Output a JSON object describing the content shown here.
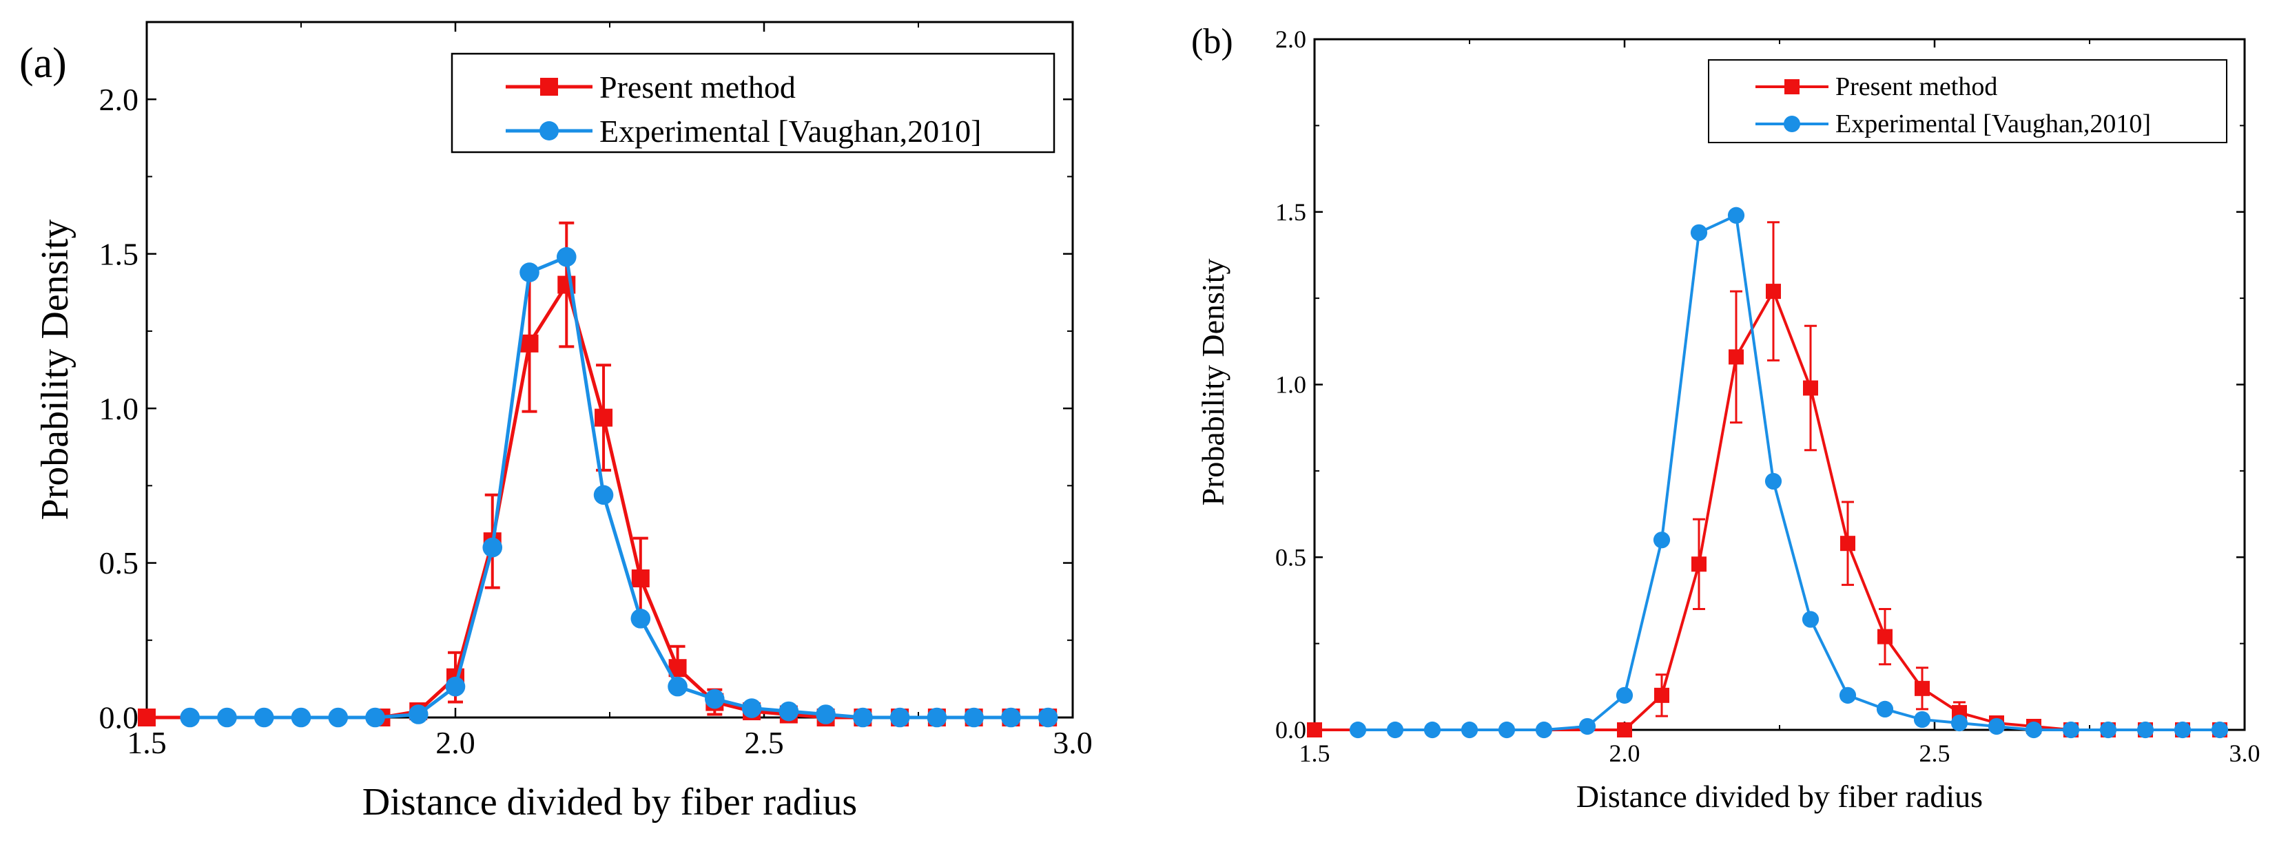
{
  "chart_data": [
    {
      "panel_label": "(a)",
      "type": "line",
      "xlabel": "Distance divided by fiber radius",
      "ylabel": "Probability Density",
      "xlim": [
        1.5,
        3.0
      ],
      "ylim": [
        0.0,
        2.25
      ],
      "xticks": [
        1.5,
        2.0,
        2.5,
        3.0
      ],
      "xtick_labels": [
        "1.5",
        "2.0",
        "2.5",
        "3.0"
      ],
      "yticks": [
        0.0,
        0.5,
        1.0,
        1.5,
        2.0
      ],
      "ytick_labels": [
        "0.0",
        "0.5",
        "1.0",
        "1.5",
        "2.0"
      ],
      "legend_position": "top-right",
      "series": [
        {
          "name": "Present method",
          "color": "#ee1111",
          "marker": "square",
          "x": [
            1.5,
            1.88,
            1.94,
            2.0,
            2.06,
            2.12,
            2.18,
            2.24,
            2.3,
            2.36,
            2.42,
            2.48,
            2.54,
            2.6,
            2.66,
            2.72,
            2.78,
            2.84,
            2.9,
            2.96
          ],
          "y": [
            0.0,
            0.0,
            0.02,
            0.13,
            0.57,
            1.21,
            1.4,
            0.97,
            0.45,
            0.16,
            0.05,
            0.02,
            0.01,
            0.0,
            0.0,
            0.0,
            0.0,
            0.0,
            0.0,
            0.0
          ],
          "error": [
            0,
            0,
            0.01,
            0.08,
            0.15,
            0.22,
            0.2,
            0.17,
            0.13,
            0.07,
            0.04,
            0.02,
            0,
            0,
            0,
            0,
            0,
            0,
            0,
            0
          ]
        },
        {
          "name": "Experimental [Vaughan,2010]",
          "color": "#1a8fe6",
          "marker": "circle",
          "x": [
            1.57,
            1.63,
            1.69,
            1.75,
            1.81,
            1.87,
            1.94,
            2.0,
            2.06,
            2.12,
            2.18,
            2.24,
            2.3,
            2.36,
            2.42,
            2.48,
            2.54,
            2.6,
            2.66,
            2.72,
            2.78,
            2.84,
            2.9,
            2.96
          ],
          "y": [
            0.0,
            0.0,
            0.0,
            0.0,
            0.0,
            0.0,
            0.01,
            0.1,
            0.55,
            1.44,
            1.49,
            0.72,
            0.32,
            0.1,
            0.06,
            0.03,
            0.02,
            0.01,
            0.0,
            0.0,
            0.0,
            0.0,
            0.0,
            0.0
          ]
        }
      ]
    },
    {
      "panel_label": "(b)",
      "type": "line",
      "xlabel": "Distance divided by fiber radius",
      "ylabel": "Probability Density",
      "xlim": [
        1.5,
        3.0
      ],
      "ylim": [
        0.0,
        2.0
      ],
      "xticks": [
        1.5,
        2.0,
        2.5,
        3.0
      ],
      "xtick_labels": [
        "1.5",
        "2.0",
        "2.5",
        "3.0"
      ],
      "yticks": [
        0.0,
        0.5,
        1.0,
        1.5,
        2.0
      ],
      "ytick_labels": [
        "0.0",
        "0.5",
        "1.0",
        "1.5",
        "2.0"
      ],
      "legend_position": "top-right",
      "series": [
        {
          "name": "Present method",
          "color": "#ee1111",
          "marker": "square",
          "x": [
            1.5,
            2.0,
            2.06,
            2.12,
            2.18,
            2.24,
            2.3,
            2.36,
            2.42,
            2.48,
            2.54,
            2.6,
            2.66,
            2.72,
            2.78,
            2.84,
            2.9,
            2.96
          ],
          "y": [
            0.0,
            0.0,
            0.1,
            0.48,
            1.08,
            1.27,
            0.99,
            0.54,
            0.27,
            0.12,
            0.05,
            0.02,
            0.01,
            0.0,
            0.0,
            0.0,
            0.0,
            0.0
          ],
          "error": [
            0,
            0,
            0.06,
            0.13,
            0.19,
            0.2,
            0.18,
            0.12,
            0.08,
            0.06,
            0.03,
            0.01,
            0,
            0,
            0,
            0,
            0,
            0
          ]
        },
        {
          "name": "Experimental [Vaughan,2010]",
          "color": "#1a8fe6",
          "marker": "circle",
          "x": [
            1.57,
            1.63,
            1.69,
            1.75,
            1.81,
            1.87,
            1.94,
            2.0,
            2.06,
            2.12,
            2.18,
            2.24,
            2.3,
            2.36,
            2.42,
            2.48,
            2.54,
            2.6,
            2.66,
            2.72,
            2.78,
            2.84,
            2.9,
            2.96
          ],
          "y": [
            0.0,
            0.0,
            0.0,
            0.0,
            0.0,
            0.0,
            0.01,
            0.1,
            0.55,
            1.44,
            1.49,
            0.72,
            0.32,
            0.1,
            0.06,
            0.03,
            0.02,
            0.01,
            0.0,
            0.0,
            0.0,
            0.0,
            0.0,
            0.0
          ]
        }
      ]
    }
  ]
}
